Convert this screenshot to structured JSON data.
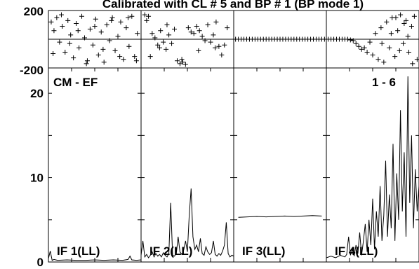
{
  "title": "Calibrated with CL # 5 and BP # 1 (BP mode 1)",
  "chart_data": {
    "type": "line",
    "title": "Calibrated with CL # 5 and BP # 1 (BP mode 1)",
    "baseline_label": "CM - EF",
    "channel_label": "1 - 6",
    "phase_axis": {
      "ylim": [
        -200,
        200
      ],
      "tick_labels": [
        "200",
        "-200"
      ]
    },
    "amp_axis": {
      "ylim": [
        0,
        23
      ],
      "tick_labels": [
        "20",
        "10",
        "0"
      ],
      "ticks": [
        20,
        10,
        0
      ]
    },
    "panels": [
      {
        "name": "IF 1(LL)",
        "phase": [
          [
            0.03,
            120
          ],
          [
            0.06,
            60
          ],
          [
            0.09,
            150
          ],
          [
            0.12,
            -20
          ],
          [
            0.15,
            90
          ],
          [
            0.18,
            -90
          ],
          [
            0.21,
            130
          ],
          [
            0.24,
            30
          ],
          [
            0.27,
            -130
          ],
          [
            0.3,
            110
          ],
          [
            0.33,
            -60
          ],
          [
            0.36,
            160
          ],
          [
            0.39,
            10
          ],
          [
            0.42,
            -150
          ],
          [
            0.45,
            70
          ],
          [
            0.48,
            -40
          ],
          [
            0.51,
            140
          ],
          [
            0.54,
            -110
          ],
          [
            0.57,
            50
          ],
          [
            0.6,
            -160
          ],
          [
            0.63,
            100
          ],
          [
            0.66,
            -10
          ],
          [
            0.69,
            150
          ],
          [
            0.72,
            -80
          ],
          [
            0.75,
            20
          ],
          [
            0.78,
            120
          ],
          [
            0.81,
            -140
          ],
          [
            0.84,
            80
          ],
          [
            0.87,
            -50
          ],
          [
            0.9,
            160
          ],
          [
            0.93,
            -120
          ],
          [
            0.96,
            40
          ],
          [
            0.05,
            -100
          ],
          [
            0.14,
            170
          ],
          [
            0.23,
            -30
          ],
          [
            0.32,
            60
          ],
          [
            0.41,
            -170
          ],
          [
            0.5,
            90
          ],
          [
            0.59,
            -70
          ],
          [
            0.68,
            130
          ],
          [
            0.77,
            -120
          ],
          [
            0.86,
            150
          ],
          [
            0.95,
            -150
          ]
        ],
        "amp": [
          [
            0.0,
            0.4
          ],
          [
            0.02,
            1.3
          ],
          [
            0.04,
            0.2
          ],
          [
            0.06,
            0.3
          ],
          [
            0.1,
            0.2
          ],
          [
            0.2,
            0.25
          ],
          [
            0.3,
            0.2
          ],
          [
            0.4,
            0.2
          ],
          [
            0.5,
            0.25
          ],
          [
            0.6,
            0.2
          ],
          [
            0.7,
            0.25
          ],
          [
            0.8,
            0.2
          ],
          [
            0.86,
            0.3
          ],
          [
            0.88,
            0.7
          ],
          [
            0.9,
            0.25
          ],
          [
            0.95,
            0.2
          ],
          [
            1.0,
            0.25
          ]
        ]
      },
      {
        "name": "IF 2(LL)",
        "phase": [
          [
            0.04,
            170
          ],
          [
            0.06,
            130
          ],
          [
            0.08,
            160
          ],
          [
            0.1,
            -120
          ],
          [
            0.12,
            40
          ],
          [
            0.15,
            10
          ],
          [
            0.18,
            -40
          ],
          [
            0.21,
            60
          ],
          [
            0.24,
            -20
          ],
          [
            0.27,
            -70
          ],
          [
            0.3,
            30
          ],
          [
            0.33,
            -30
          ],
          [
            0.36,
            70
          ],
          [
            0.39,
            -150
          ],
          [
            0.42,
            -170
          ],
          [
            0.45,
            -160
          ],
          [
            0.48,
            -175
          ],
          [
            0.51,
            80
          ],
          [
            0.54,
            50
          ],
          [
            0.57,
            40
          ],
          [
            0.6,
            90
          ],
          [
            0.63,
            60
          ],
          [
            0.66,
            20
          ],
          [
            0.69,
            -10
          ],
          [
            0.72,
            100
          ],
          [
            0.75,
            -20
          ],
          [
            0.78,
            30
          ],
          [
            0.81,
            120
          ],
          [
            0.84,
            -50
          ],
          [
            0.87,
            -110
          ],
          [
            0.9,
            -40
          ],
          [
            0.93,
            80
          ],
          [
            0.2,
            -60
          ],
          [
            0.28,
            100
          ],
          [
            0.44,
            -140
          ],
          [
            0.62,
            -80
          ],
          [
            0.8,
            -60
          ]
        ],
        "amp": [
          [
            0.0,
            0.8
          ],
          [
            0.02,
            2.5
          ],
          [
            0.04,
            0.6
          ],
          [
            0.06,
            0.9
          ],
          [
            0.08,
            0.5
          ],
          [
            0.1,
            0.8
          ],
          [
            0.12,
            1.2
          ],
          [
            0.14,
            0.6
          ],
          [
            0.16,
            1.0
          ],
          [
            0.18,
            0.7
          ],
          [
            0.2,
            0.9
          ],
          [
            0.22,
            0.6
          ],
          [
            0.24,
            1.1
          ],
          [
            0.26,
            0.8
          ],
          [
            0.28,
            0.6
          ],
          [
            0.3,
            1.0
          ],
          [
            0.32,
            7.0
          ],
          [
            0.34,
            0.8
          ],
          [
            0.36,
            0.7
          ],
          [
            0.38,
            1.0
          ],
          [
            0.4,
            3.0
          ],
          [
            0.42,
            1.2
          ],
          [
            0.44,
            0.9
          ],
          [
            0.46,
            1.4
          ],
          [
            0.48,
            2.5
          ],
          [
            0.5,
            1.2
          ],
          [
            0.52,
            5.5
          ],
          [
            0.54,
            8.7
          ],
          [
            0.56,
            3.0
          ],
          [
            0.58,
            1.5
          ],
          [
            0.6,
            2.0
          ],
          [
            0.62,
            1.2
          ],
          [
            0.64,
            2.8
          ],
          [
            0.66,
            1.0
          ],
          [
            0.68,
            0.8
          ],
          [
            0.7,
            1.8
          ],
          [
            0.72,
            1.2
          ],
          [
            0.74,
            0.9
          ],
          [
            0.76,
            1.1
          ],
          [
            0.78,
            2.5
          ],
          [
            0.8,
            0.9
          ],
          [
            0.82,
            0.7
          ],
          [
            0.84,
            1.0
          ],
          [
            0.86,
            0.8
          ],
          [
            0.88,
            1.3
          ],
          [
            0.9,
            2.0
          ],
          [
            0.92,
            4.7
          ],
          [
            0.94,
            1.0
          ],
          [
            0.96,
            0.6
          ],
          [
            0.98,
            0.8
          ],
          [
            1.0,
            0.7
          ]
        ]
      },
      {
        "name": "IF 3(LL)",
        "phase": [
          [
            0.02,
            0
          ],
          [
            0.05,
            0
          ],
          [
            0.08,
            0
          ],
          [
            0.11,
            0
          ],
          [
            0.14,
            0
          ],
          [
            0.17,
            0
          ],
          [
            0.2,
            0
          ],
          [
            0.23,
            0
          ],
          [
            0.26,
            0
          ],
          [
            0.29,
            0
          ],
          [
            0.32,
            0
          ],
          [
            0.35,
            0
          ],
          [
            0.38,
            0
          ],
          [
            0.41,
            0
          ],
          [
            0.44,
            0
          ],
          [
            0.47,
            0
          ],
          [
            0.5,
            0
          ],
          [
            0.53,
            0
          ],
          [
            0.56,
            0
          ],
          [
            0.59,
            0
          ],
          [
            0.62,
            0
          ],
          [
            0.65,
            0
          ],
          [
            0.68,
            0
          ],
          [
            0.71,
            0
          ],
          [
            0.74,
            0
          ],
          [
            0.77,
            0
          ],
          [
            0.8,
            0
          ],
          [
            0.83,
            0
          ],
          [
            0.86,
            0
          ],
          [
            0.89,
            0
          ],
          [
            0.92,
            0
          ],
          [
            0.95,
            0
          ],
          [
            0.98,
            0
          ]
        ],
        "amp": [
          [
            0.05,
            5.3
          ],
          [
            0.15,
            5.35
          ],
          [
            0.25,
            5.4
          ],
          [
            0.35,
            5.35
          ],
          [
            0.45,
            5.4
          ],
          [
            0.55,
            5.45
          ],
          [
            0.65,
            5.4
          ],
          [
            0.75,
            5.45
          ],
          [
            0.85,
            5.5
          ],
          [
            0.95,
            5.45
          ]
        ]
      },
      {
        "name": "IF 4(LL)",
        "phase": [
          [
            0.02,
            0
          ],
          [
            0.05,
            0
          ],
          [
            0.08,
            0
          ],
          [
            0.11,
            0
          ],
          [
            0.14,
            0
          ],
          [
            0.17,
            0
          ],
          [
            0.2,
            0
          ],
          [
            0.23,
            0
          ],
          [
            0.26,
            -5
          ],
          [
            0.29,
            -10
          ],
          [
            0.32,
            -30
          ],
          [
            0.35,
            -50
          ],
          [
            0.38,
            -70
          ],
          [
            0.41,
            -60
          ],
          [
            0.44,
            -90
          ],
          [
            0.47,
            -20
          ],
          [
            0.5,
            -110
          ],
          [
            0.53,
            40
          ],
          [
            0.56,
            -140
          ],
          [
            0.59,
            80
          ],
          [
            0.62,
            -160
          ],
          [
            0.65,
            120
          ],
          [
            0.68,
            -60
          ],
          [
            0.71,
            150
          ],
          [
            0.74,
            -120
          ],
          [
            0.77,
            60
          ],
          [
            0.8,
            170
          ],
          [
            0.83,
            -30
          ],
          [
            0.86,
            130
          ],
          [
            0.89,
            -90
          ],
          [
            0.92,
            90
          ],
          [
            0.95,
            160
          ],
          [
            0.98,
            -140
          ],
          [
            0.6,
            -30
          ],
          [
            0.7,
            40
          ],
          [
            0.79,
            -80
          ],
          [
            0.88,
            20
          ],
          [
            0.93,
            -170
          ],
          [
            0.75,
            150
          ],
          [
            0.84,
            110
          ]
        ],
        "amp": [
          [
            0.0,
            0.5
          ],
          [
            0.05,
            0.7
          ],
          [
            0.1,
            0.5
          ],
          [
            0.15,
            0.8
          ],
          [
            0.2,
            0.6
          ],
          [
            0.22,
            0.9
          ],
          [
            0.24,
            3.0
          ],
          [
            0.26,
            0.8
          ],
          [
            0.28,
            1.5
          ],
          [
            0.3,
            0.7
          ],
          [
            0.32,
            2.0
          ],
          [
            0.34,
            1.0
          ],
          [
            0.36,
            3.5
          ],
          [
            0.38,
            0.8
          ],
          [
            0.4,
            2.5
          ],
          [
            0.42,
            4.5
          ],
          [
            0.44,
            1.2
          ],
          [
            0.46,
            5.0
          ],
          [
            0.48,
            2.0
          ],
          [
            0.5,
            7.5
          ],
          [
            0.52,
            1.5
          ],
          [
            0.54,
            6.0
          ],
          [
            0.56,
            3.0
          ],
          [
            0.58,
            9.0
          ],
          [
            0.6,
            2.5
          ],
          [
            0.62,
            5.5
          ],
          [
            0.64,
            12.0
          ],
          [
            0.66,
            3.0
          ],
          [
            0.68,
            8.0
          ],
          [
            0.7,
            4.0
          ],
          [
            0.72,
            14.0
          ],
          [
            0.74,
            2.5
          ],
          [
            0.76,
            10.5
          ],
          [
            0.78,
            5.0
          ],
          [
            0.8,
            18.0
          ],
          [
            0.82,
            6.0
          ],
          [
            0.84,
            13.0
          ],
          [
            0.86,
            3.0
          ],
          [
            0.88,
            22.0
          ],
          [
            0.9,
            7.0
          ],
          [
            0.92,
            15.0
          ],
          [
            0.94,
            4.0
          ],
          [
            0.96,
            11.0
          ],
          [
            0.98,
            6.0
          ],
          [
            1.0,
            9.0
          ]
        ]
      }
    ]
  }
}
